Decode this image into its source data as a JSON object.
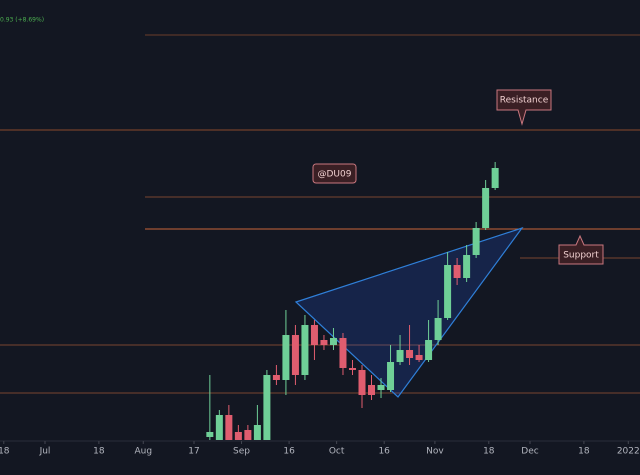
{
  "chart_data": {
    "type": "candlestick",
    "header_text": "0.93 (+8.69%)",
    "annotations": [
      "Resistance",
      "Support",
      "@DU09"
    ],
    "up_color": "#6fcf97",
    "down_color": "#e05d6f",
    "x": [
      65,
      68,
      71,
      74,
      77,
      80,
      83,
      86,
      89,
      92,
      95,
      98,
      101,
      104,
      107,
      110,
      113,
      116,
      119,
      122,
      125,
      128,
      131,
      134,
      137,
      140,
      143,
      146,
      149,
      152,
      155
    ],
    "open": [
      3,
      0,
      25,
      8,
      10,
      0,
      0,
      65,
      60,
      105,
      65,
      115,
      100,
      95,
      102,
      72,
      70,
      55,
      50,
      50,
      78,
      90,
      85,
      80,
      100,
      122,
      175,
      162,
      185,
      212,
      252
    ],
    "high": [
      65,
      30,
      35,
      15,
      15,
      35,
      70,
      75,
      130,
      115,
      125,
      120,
      105,
      112,
      107,
      80,
      75,
      65,
      62,
      95,
      105,
      115,
      95,
      120,
      140,
      188,
      182,
      195,
      218,
      260,
      278
    ],
    "low": [
      0,
      0,
      0,
      0,
      0,
      0,
      0,
      55,
      45,
      55,
      60,
      80,
      90,
      90,
      65,
      65,
      32,
      40,
      42,
      48,
      75,
      75,
      78,
      78,
      95,
      120,
      155,
      158,
      182,
      210,
      250
    ],
    "close": [
      8,
      25,
      0,
      0,
      0,
      15,
      65,
      60,
      105,
      65,
      115,
      95,
      95,
      102,
      72,
      70,
      45,
      45,
      55,
      78,
      90,
      82,
      80,
      100,
      122,
      175,
      162,
      185,
      212,
      252,
      272
    ],
    "ylim": [
      0,
      440
    ],
    "xticks": [
      {
        "value": 0,
        "label": "18"
      },
      {
        "value": 13,
        "label": "Jul"
      },
      {
        "value": 30,
        "label": "18"
      },
      {
        "value": 44,
        "label": "Aug"
      },
      {
        "value": 60,
        "label": "17"
      },
      {
        "value": 75,
        "label": "Sep"
      },
      {
        "value": 90,
        "label": "16"
      },
      {
        "value": 105,
        "label": "Oct"
      },
      {
        "value": 120,
        "label": "16"
      },
      {
        "value": 136,
        "label": "Nov"
      },
      {
        "value": 153,
        "label": "18"
      },
      {
        "value": 166,
        "label": "Dec"
      },
      {
        "value": 183,
        "label": "18"
      },
      {
        "value": 197,
        "label": "2022"
      }
    ]
  }
}
